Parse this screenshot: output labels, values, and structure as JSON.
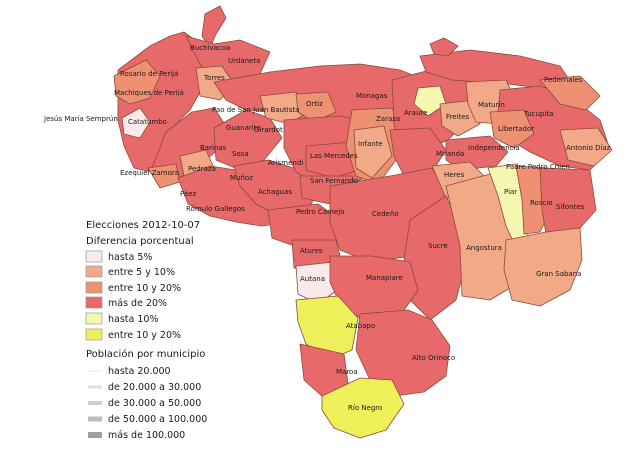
{
  "colors": {
    "hasta_5": "#fbeaea",
    "entre_5_10": "#f2a988",
    "entre_10_20": "#ee9072",
    "mas_20": "#e8696a",
    "y_hasta_10": "#f5f7b0",
    "y_entre_10_20": "#eef05a",
    "border": "#8a4a3a"
  },
  "legend": {
    "date_title": "Elecciones 2012-10-07",
    "diff_title": "Diferencia porcentual",
    "diff_items": [
      {
        "label": "hasta 5%",
        "color_key": "hasta_5"
      },
      {
        "label": "entre 5 y 10%",
        "color_key": "entre_5_10"
      },
      {
        "label": "entre 10 y 20%",
        "color_key": "entre_10_20"
      },
      {
        "label": "más de 20%",
        "color_key": "mas_20"
      },
      {
        "label": "hasta 10%",
        "color_key": "y_hasta_10"
      },
      {
        "label": "entre 10 y 20%",
        "color_key": "y_entre_10_20"
      }
    ],
    "pop_title": "Población por municipio",
    "pop_items": [
      {
        "label": "hasta 20.000"
      },
      {
        "label": "de 20.000 a 30.000"
      },
      {
        "label": "de 30.000 a 50.000"
      },
      {
        "label": "de 50.000 a 100.000"
      },
      {
        "label": "más de 100.000"
      }
    ]
  },
  "labels": [
    "Buchivacoa",
    "Urdaneta",
    "Rosario de Perijá",
    "Torres",
    "Machiques de Perijá",
    "Jesús María Semprún",
    "Catatumbo",
    "Pao de San Juan Bautista",
    "Ortiz",
    "Monagas",
    "Zaraza",
    "Araure",
    "Freites",
    "Maturín",
    "Tucupita",
    "Pedernales",
    "Libertador",
    "Antonio Díaz",
    "Independencia",
    "Padre Pedro Chien",
    "Miranda",
    "Infante",
    "Las Mercedes",
    "Guanarito",
    "Girardot",
    "Sosa",
    "Arismendi",
    "Barinas",
    "Pedraza",
    "Ezequiel Zamora",
    "Muñoz",
    "Achaguas",
    "San Fernando",
    "Páez",
    "Rómulo Gallegos",
    "Pedro Camejo",
    "Cedeño",
    "Heres",
    "Piar",
    "Roscio",
    "Sifontes",
    "Angostura",
    "Gran Sabana",
    "Sucre",
    "Atures",
    "Autana",
    "Manapiare",
    "Atabapo",
    "Maroa",
    "Alto Orinoco",
    "Río Negro"
  ]
}
